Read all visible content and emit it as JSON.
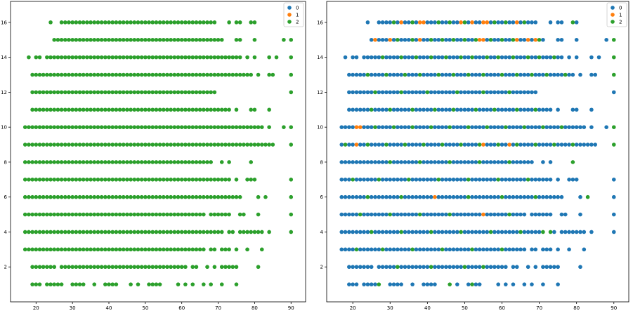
{
  "colors": {
    "0": "#1f77b4",
    "1": "#ff7f0e",
    "2": "#2ca02c"
  },
  "chart_data": [
    {
      "type": "scatter",
      "title": "",
      "xlabel": "",
      "ylabel": "",
      "xlim": [
        13,
        94
      ],
      "ylim": [
        0,
        17.2
      ],
      "xticks": [
        20,
        30,
        40,
        50,
        60,
        70,
        80,
        90
      ],
      "yticks": [
        2,
        4,
        6,
        8,
        10,
        12,
        14,
        16
      ],
      "legend": {
        "placement": "top-right",
        "entries": [
          "0",
          "1",
          "2"
        ]
      },
      "rows": [
        {
          "y": 16,
          "xmin": 27,
          "xmax": 69,
          "default": "2",
          "extra": [
            24,
            73,
            75,
            76,
            79,
            80
          ],
          "overrides": {}
        },
        {
          "y": 15,
          "xmin": 25,
          "xmax": 71,
          "default": "2",
          "extra": [
            75,
            76,
            80,
            88,
            90
          ],
          "overrides": {
            "72": "1"
          }
        },
        {
          "y": 14,
          "xmin": 23,
          "xmax": 76,
          "default": "2",
          "extra": [
            18,
            20,
            21,
            78,
            80,
            84,
            86,
            90
          ],
          "overrides": {}
        },
        {
          "y": 13,
          "xmin": 19,
          "xmax": 79,
          "default": "2",
          "extra": [
            81,
            84,
            85,
            90
          ],
          "overrides": {
            "83": "0"
          }
        },
        {
          "y": 12,
          "xmin": 19,
          "xmax": 69,
          "default": "2",
          "extra": [
            90
          ],
          "overrides": {}
        },
        {
          "y": 11,
          "xmin": 19,
          "xmax": 73,
          "default": "2",
          "extra": [
            75,
            79,
            80,
            84
          ],
          "overrides": {}
        },
        {
          "y": 10,
          "xmin": 17,
          "xmax": 82,
          "default": "2",
          "extra": [
            84,
            88,
            90
          ],
          "overrides": {}
        },
        {
          "y": 9,
          "xmin": 17,
          "xmax": 85,
          "default": "2",
          "extra": [
            90
          ],
          "overrides": {}
        },
        {
          "y": 8,
          "xmin": 17,
          "xmax": 66,
          "default": "2",
          "extra": [
            67,
            68,
            71,
            73,
            79
          ],
          "overrides": {}
        },
        {
          "y": 7,
          "xmin": 17,
          "xmax": 73,
          "default": "2",
          "extra": [
            75,
            78,
            79,
            80,
            90
          ],
          "overrides": {}
        },
        {
          "y": 6,
          "xmin": 17,
          "xmax": 76,
          "default": "2",
          "extra": [
            81,
            83,
            90
          ],
          "overrides": {}
        },
        {
          "y": 5,
          "xmin": 17,
          "xmax": 66,
          "default": "2",
          "extra": [
            68,
            69,
            70,
            71,
            72,
            73,
            76,
            77,
            81,
            90
          ],
          "overrides": {}
        },
        {
          "y": 4,
          "xmin": 17,
          "xmax": 71,
          "default": "2",
          "extra": [
            73,
            74,
            76,
            77,
            78,
            79,
            80,
            81,
            82,
            84,
            90
          ],
          "overrides": {}
        },
        {
          "y": 3,
          "xmin": 17,
          "xmax": 66,
          "default": "2",
          "extra": [
            68,
            69,
            71,
            72,
            73,
            75,
            78,
            82
          ],
          "overrides": {}
        },
        {
          "y": 2,
          "xmin": 28,
          "xmax": 61,
          "default": "2",
          "extra": [
            19,
            20,
            21,
            22,
            23,
            24,
            25,
            27,
            63,
            64,
            67,
            69,
            71,
            72,
            73,
            74,
            75,
            81
          ],
          "overrides": {}
        },
        {
          "y": 1,
          "xmin": 30,
          "xmax": 33,
          "default": "2",
          "extra": [
            19,
            20,
            21,
            23,
            24,
            25,
            26,
            27,
            36,
            39,
            40,
            41,
            42,
            46,
            48,
            51,
            52,
            53,
            54,
            59,
            61,
            63,
            66,
            68,
            71,
            75
          ],
          "overrides": {}
        }
      ]
    },
    {
      "type": "scatter",
      "title": "",
      "xlabel": "",
      "ylabel": "",
      "xlim": [
        13,
        94
      ],
      "ylim": [
        0,
        17.2
      ],
      "xticks": [
        20,
        30,
        40,
        50,
        60,
        70,
        80,
        90
      ],
      "yticks": [
        2,
        4,
        6,
        8,
        10,
        12,
        14,
        16
      ],
      "legend": {
        "placement": "top-right",
        "entries": [
          "0",
          "1",
          "2"
        ]
      },
      "rows": [
        {
          "y": 16,
          "xmin": 27,
          "xmax": 69,
          "default": "0",
          "extra": [
            24,
            73,
            75,
            76,
            79,
            80
          ],
          "overrides": {
            "31": "2",
            "33": "1",
            "36": "2",
            "38": "1",
            "39": "1",
            "43": "2",
            "46": "2",
            "49": "1",
            "50": "2",
            "52": "1",
            "55": "1",
            "56": "1",
            "58": "2",
            "61": "2",
            "64": "1",
            "66": "2",
            "77": "2",
            "79": "2"
          }
        },
        {
          "y": 15,
          "xmin": 25,
          "xmax": 71,
          "default": "0",
          "extra": [
            75,
            76,
            80,
            88,
            90
          ],
          "overrides": {
            "26": "1",
            "30": "1",
            "32": "2",
            "36": "2",
            "38": "1",
            "41": "2",
            "44": "2",
            "47": "2",
            "50": "2",
            "53": "2",
            "54": "1",
            "55": "1",
            "57": "2",
            "60": "2",
            "63": "2",
            "64": "1",
            "67": "1",
            "69": "1",
            "70": "2",
            "72": "1",
            "74": "1",
            "90": "2"
          }
        },
        {
          "y": 14,
          "xmin": 23,
          "xmax": 76,
          "default": "0",
          "extra": [
            18,
            20,
            21,
            78,
            80,
            84,
            86,
            90
          ],
          "overrides": {
            "28": "2",
            "33": "2",
            "37": "2",
            "41": "2",
            "45": "2",
            "49": "2",
            "52": "2",
            "56": "2",
            "59": "2",
            "63": "2",
            "67": "2",
            "70": "2",
            "74": "2",
            "90": "2"
          }
        },
        {
          "y": 13,
          "xmin": 19,
          "xmax": 79,
          "default": "0",
          "extra": [
            81,
            84,
            85,
            90
          ],
          "overrides": {
            "24": "2",
            "29": "2",
            "34": "2",
            "38": "2",
            "43": "2",
            "47": "2",
            "51": "2",
            "55": "2",
            "60": "2",
            "64": "2",
            "68": "2",
            "72": "2",
            "77": "2",
            "90": "2"
          }
        },
        {
          "y": 12,
          "xmin": 19,
          "xmax": 69,
          "default": "0",
          "extra": [
            90
          ],
          "overrides": {
            "26": "2",
            "33": "2",
            "40": "2",
            "48": "2",
            "55": "2",
            "62": "2"
          }
        },
        {
          "y": 11,
          "xmin": 19,
          "xmax": 73,
          "default": "0",
          "extra": [
            75,
            79,
            80,
            84
          ],
          "overrides": {
            "25": "2",
            "30": "2",
            "36": "2",
            "42": "2",
            "47": "2",
            "53": "2",
            "58": "2",
            "64": "2",
            "69": "2"
          }
        },
        {
          "y": 10,
          "xmin": 17,
          "xmax": 82,
          "default": "0",
          "extra": [
            84,
            88,
            90
          ],
          "overrides": {
            "21": "1",
            "22": "1",
            "26": "2",
            "31": "2",
            "36": "2",
            "41": "2",
            "46": "2",
            "51": "2",
            "56": "2",
            "61": "2",
            "66": "2",
            "71": "2",
            "76": "2",
            "90": "2"
          }
        },
        {
          "y": 9,
          "xmin": 17,
          "xmax": 85,
          "default": "0",
          "extra": [
            90
          ],
          "overrides": {
            "18": "2",
            "21": "1",
            "24": "2",
            "29": "2",
            "34": "2",
            "39": "2",
            "44": "2",
            "49": "2",
            "54": "2",
            "55": "1",
            "59": "2",
            "62": "1",
            "64": "2",
            "69": "2",
            "74": "2",
            "79": "2",
            "90": "2"
          }
        },
        {
          "y": 8,
          "xmin": 17,
          "xmax": 66,
          "default": "0",
          "extra": [
            67,
            68,
            71,
            73,
            79
          ],
          "overrides": {
            "30": "2",
            "38": "2",
            "46": "2",
            "54": "2",
            "62": "2",
            "79": "2"
          }
        },
        {
          "y": 7,
          "xmin": 17,
          "xmax": 73,
          "default": "0",
          "extra": [
            75,
            78,
            79,
            80,
            90
          ],
          "overrides": {
            "20": "2",
            "27": "2",
            "35": "2",
            "43": "2",
            "51": "2",
            "59": "2",
            "67": "2"
          }
        },
        {
          "y": 6,
          "xmin": 17,
          "xmax": 76,
          "default": "0",
          "extra": [
            81,
            83,
            90
          ],
          "overrides": {
            "24": "2",
            "33": "2",
            "42": "1",
            "51": "2",
            "60": "2",
            "69": "2",
            "83": "2"
          }
        },
        {
          "y": 5,
          "xmin": 17,
          "xmax": 66,
          "default": "0",
          "extra": [
            68,
            69,
            70,
            71,
            72,
            73,
            76,
            77,
            81,
            90
          ],
          "overrides": {
            "22": "2",
            "30": "2",
            "38": "2",
            "46": "2",
            "55": "1",
            "62": "2"
          }
        },
        {
          "y": 4,
          "xmin": 17,
          "xmax": 71,
          "default": "0",
          "extra": [
            73,
            74,
            76,
            77,
            78,
            79,
            80,
            81,
            82,
            84,
            90
          ],
          "overrides": {
            "25": "2",
            "33": "2",
            "41": "2",
            "49": "2",
            "57": "2",
            "65": "2",
            "71": "2",
            "73": "2"
          }
        },
        {
          "y": 3,
          "xmin": 17,
          "xmax": 66,
          "default": "0",
          "extra": [
            68,
            69,
            71,
            72,
            73,
            75,
            78,
            82
          ],
          "overrides": {
            "21": "2",
            "28": "2",
            "36": "2",
            "44": "2",
            "52": "2",
            "60": "2"
          }
        },
        {
          "y": 2,
          "xmin": 28,
          "xmax": 61,
          "default": "0",
          "extra": [
            19,
            20,
            21,
            22,
            23,
            24,
            25,
            27,
            63,
            64,
            67,
            69,
            71,
            72,
            73,
            74,
            75,
            81
          ],
          "overrides": {
            "32": "2",
            "41": "2",
            "50": "2",
            "55": "2"
          }
        },
        {
          "y": 1,
          "xmin": 30,
          "xmax": 33,
          "default": "0",
          "extra": [
            19,
            20,
            21,
            23,
            24,
            25,
            26,
            27,
            36,
            39,
            40,
            41,
            42,
            46,
            48,
            51,
            52,
            53,
            54,
            59,
            61,
            63,
            66,
            68,
            71,
            75
          ],
          "overrides": {
            "27": "2",
            "46": "2",
            "52": "2"
          }
        }
      ]
    }
  ]
}
